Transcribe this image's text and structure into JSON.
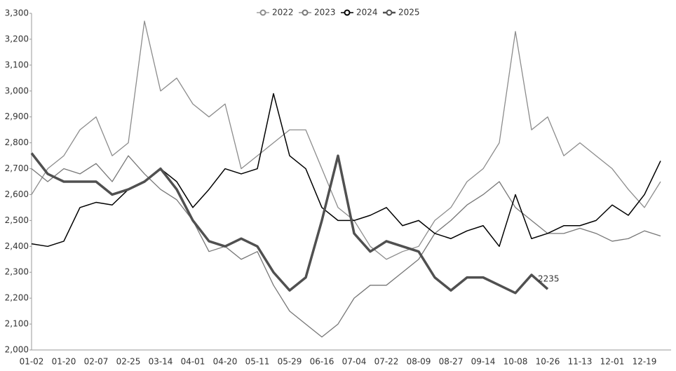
{
  "chart_data": {
    "type": "line",
    "categories": [
      "01-02",
      null,
      "01-20",
      null,
      "02-07",
      null,
      "02-25",
      null,
      "03-14",
      null,
      "04-01",
      null,
      "04-20",
      null,
      "05-11",
      null,
      "05-29",
      null,
      "06-16",
      null,
      "07-04",
      null,
      "07-22",
      null,
      "08-09",
      null,
      "08-27",
      null,
      "09-14",
      null,
      "10-08",
      null,
      "10-26",
      null,
      "11-13",
      null,
      "12-01",
      null,
      "12-19",
      null
    ],
    "series": [
      {
        "name": "2022",
        "color": "#8c8c8c",
        "width": 1.3,
        "values": [
          2600,
          2700,
          2750,
          2850,
          2900,
          2750,
          2800,
          3270,
          3000,
          3050,
          2950,
          2900,
          2950,
          2700,
          2750,
          2800,
          2850,
          2850,
          2700,
          2550,
          2500,
          2400,
          2350,
          2380,
          2400,
          2500,
          2550,
          2650,
          2700,
          2800,
          3230,
          2850,
          2900,
          2750,
          2800,
          2750,
          2700,
          2620,
          2550,
          2650
        ]
      },
      {
        "name": "2023",
        "color": "#777777",
        "width": 1.3,
        "values": [
          2700,
          2650,
          2700,
          2680,
          2720,
          2650,
          2750,
          2680,
          2620,
          2580,
          2500,
          2380,
          2400,
          2350,
          2380,
          2250,
          2150,
          2100,
          2050,
          2100,
          2200,
          2250,
          2250,
          2300,
          2350,
          2450,
          2500,
          2560,
          2600,
          2650,
          2550,
          2500,
          2450,
          2450,
          2470,
          2450,
          2420,
          2430,
          2460,
          2440
        ]
      },
      {
        "name": "2024",
        "color": "#000000",
        "width": 1.5,
        "values": [
          2410,
          2400,
          2420,
          2550,
          2570,
          2560,
          2620,
          2650,
          2700,
          2650,
          2550,
          2620,
          2700,
          2680,
          2700,
          2990,
          2750,
          2700,
          2550,
          2500,
          2500,
          2520,
          2550,
          2480,
          2500,
          2450,
          2430,
          2460,
          2480,
          2400,
          2600,
          2430,
          2450,
          2480,
          2480,
          2500,
          2560,
          2520,
          2600,
          2730
        ]
      },
      {
        "name": "2025",
        "color": "#505050",
        "width": 3.5,
        "values": [
          2760,
          2680,
          2650,
          2650,
          2650,
          2600,
          2620,
          2650,
          2700,
          2620,
          2500,
          2420,
          2400,
          2430,
          2400,
          2300,
          2230,
          2280,
          2500,
          2750,
          2450,
          2380,
          2420,
          2400,
          2380,
          2280,
          2230,
          2280,
          2280,
          2250,
          2220,
          2290,
          2235,
          null,
          null,
          null,
          null,
          null,
          null,
          null
        ]
      }
    ],
    "ylim": [
      2000,
      3300
    ],
    "yticks": [
      {
        "value": 2000,
        "label": "2,000"
      },
      {
        "value": 2100,
        "label": "2,100"
      },
      {
        "value": 2200,
        "label": "2,200"
      },
      {
        "value": 2300,
        "label": "2,300"
      },
      {
        "value": 2400,
        "label": "2,400"
      },
      {
        "value": 2500,
        "label": "2,500"
      },
      {
        "value": 2600,
        "label": "2,600"
      },
      {
        "value": 2700,
        "label": "2,700"
      },
      {
        "value": 2800,
        "label": "2,800"
      },
      {
        "value": 2900,
        "label": "2,900"
      },
      {
        "value": 3000,
        "label": "3,000"
      },
      {
        "value": 3100,
        "label": "3,100"
      },
      {
        "value": 3200,
        "label": "3,200"
      },
      {
        "value": 3300,
        "label": "3,300"
      }
    ],
    "grid": false
  }
}
